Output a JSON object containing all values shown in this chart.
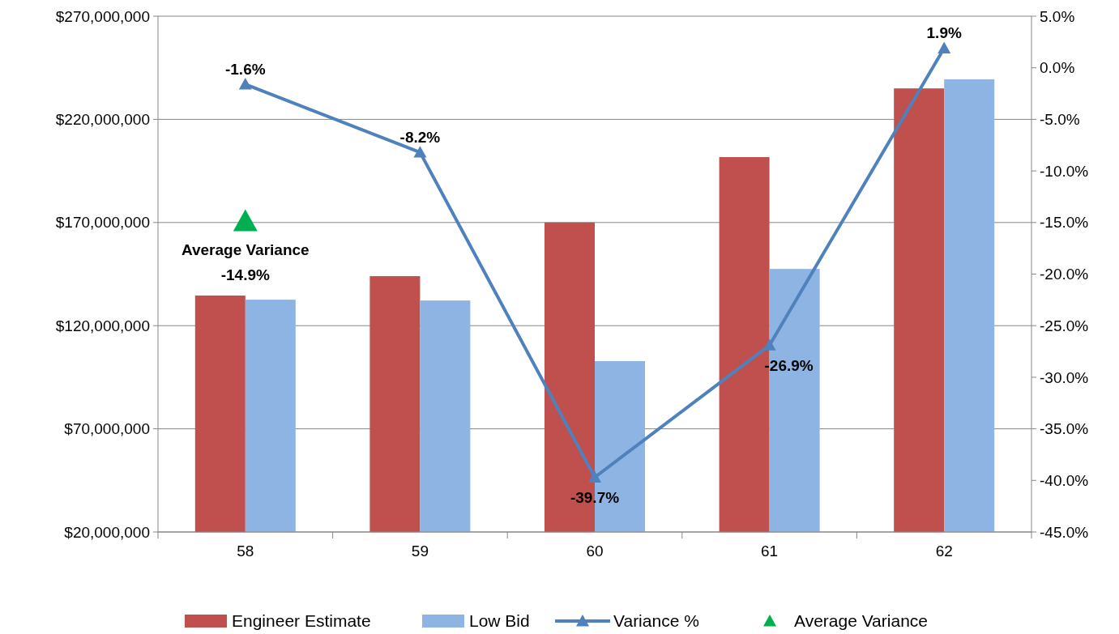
{
  "chart_data": {
    "type": "bar",
    "categories": [
      "58",
      "59",
      "60",
      "61",
      "62"
    ],
    "series": [
      {
        "name": "Engineer Estimate",
        "color": "#c0504d",
        "values": [
          134600000,
          144000000,
          170000000,
          201700000,
          235000000
        ]
      },
      {
        "name": "Low Bid",
        "color": "#8eb4e3",
        "values": [
          132600000,
          132200000,
          102800000,
          147500000,
          239400000
        ]
      },
      {
        "name": "Variance %",
        "type": "line",
        "axis": "y2",
        "color": "#4f81bd",
        "marker": "triangle",
        "values": [
          -1.6,
          -8.2,
          -39.7,
          -26.9,
          1.9
        ],
        "value_labels": [
          "-1.6%",
          "-8.2%",
          "-39.7%",
          "-26.9%",
          "1.9%"
        ]
      },
      {
        "name": "Average Variance",
        "type": "scatter",
        "axis": "y2",
        "color": "#00b050",
        "marker": "triangle",
        "x": [
          "58"
        ],
        "values": [
          -14.9
        ],
        "value_labels": [
          "-14.9%"
        ]
      }
    ],
    "annotations": [
      "Average Variance"
    ],
    "ylim": [
      20000000,
      270000000
    ],
    "yticks": [
      {
        "value": 20000000,
        "label": "$20,000,000"
      },
      {
        "value": 70000000,
        "label": "$70,000,000"
      },
      {
        "value": 120000000,
        "label": "$120,000,000"
      },
      {
        "value": 170000000,
        "label": "$170,000,000"
      },
      {
        "value": 220000000,
        "label": "$220,000,000"
      },
      {
        "value": 270000000,
        "label": "$270,000,000"
      }
    ],
    "y2lim": [
      -45,
      5
    ],
    "y2ticks": [
      {
        "value": -45,
        "label": "-45.0%"
      },
      {
        "value": -40,
        "label": "-40.0%"
      },
      {
        "value": -35,
        "label": "-35.0%"
      },
      {
        "value": -30,
        "label": "-30.0%"
      },
      {
        "value": -25,
        "label": "-25.0%"
      },
      {
        "value": -20,
        "label": "-20.0%"
      },
      {
        "value": -15,
        "label": "-15.0%"
      },
      {
        "value": -10,
        "label": "-10.0%"
      },
      {
        "value": -5,
        "label": "-5.0%"
      },
      {
        "value": 0,
        "label": "0.0%"
      },
      {
        "value": 5,
        "label": "5.0%"
      }
    ],
    "grid": "y",
    "legend": "bottom"
  }
}
